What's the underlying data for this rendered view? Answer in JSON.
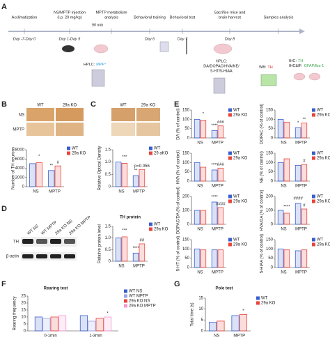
{
  "panel_labels": [
    "A",
    "B",
    "C",
    "D",
    "E",
    "F",
    "G"
  ],
  "timeline": {
    "events": [
      [
        "Acclimatization"
      ],
      [
        "NS/MPTP injection",
        "(i.p. 20 mg/kg)"
      ],
      [
        "MPTP metabolism",
        "analysis"
      ],
      [
        "Behavioral training"
      ],
      [
        "Behavioral test"
      ],
      [
        "Sacrifice mice and",
        "brain harvest"
      ],
      [
        "Samples analysis"
      ]
    ],
    "days": [
      "Day -7-Day 0",
      "Day 1-Day 5",
      "Day 6",
      "Day 7",
      "Day 8"
    ],
    "interval": "90 min",
    "mpp_hplc": {
      "label": "HPLC:",
      "value": "MPP⁺"
    },
    "brain_hplc": {
      "label": "HPLC:",
      "lines": [
        "DA/DOPAC/HVA/NE/",
        "5-HT/5-HIAA"
      ]
    },
    "wb": {
      "label": "WB:",
      "value": "TH"
    },
    "ihc": [
      {
        "label": "IHC:",
        "value": "TH"
      },
      {
        "label": "IHC&IF:",
        "value": "GFAP/Iba-1"
      }
    ]
  },
  "images": {
    "b": {
      "columns": [
        "WT",
        "29a KO"
      ],
      "rows": [
        "NS",
        "MPTP"
      ]
    },
    "c": {
      "columns": [
        "WT",
        "29a KO"
      ]
    },
    "d": {
      "lanes": [
        "WT NS",
        "WT MPTP",
        "29a KO NS",
        "29a KO MPTP"
      ],
      "bands": [
        "TH",
        "β-actin"
      ]
    }
  },
  "chart_data": [
    {
      "type": "bar",
      "ylabel": "Number of TH neurons",
      "categories": [
        "NS",
        "MPTP"
      ],
      "series": [
        {
          "name": "WT",
          "color": "#3a5fcd",
          "values": [
            5000,
            3500
          ]
        },
        {
          "name": "29a KO",
          "color": "#e8453c",
          "values": [
            5200,
            4500
          ]
        }
      ],
      "ylim": [
        0,
        8000
      ],
      "yticks": [
        0,
        2000,
        4000,
        6000,
        8000
      ],
      "annotations": [
        "#",
        "**",
        "*"
      ]
    },
    {
      "type": "bar",
      "ylabel": "Relative Optical Density",
      "categories": [
        "NS",
        "MPTP"
      ],
      "series": [
        {
          "name": "WT",
          "color": "#3a5fcd",
          "values": [
            1.0,
            0.45
          ]
        },
        {
          "name": "29 aKO",
          "color": "#e8453c",
          "values": [
            0.95,
            0.7
          ]
        }
      ],
      "ylim": [
        0,
        1.5
      ],
      "yticks": [
        0,
        0.5,
        {
          "value": 1,
          "label": "1.0"
        },
        1.5
      ],
      "annotations": [
        "p=0.056",
        "**",
        "***"
      ]
    },
    {
      "type": "bar",
      "title": "TH protein",
      "ylabel": "Relative protein level",
      "categories": [
        "NS",
        "MPTP"
      ],
      "series": [
        {
          "name": "WT",
          "color": "#3a5fcd",
          "values": [
            1.0,
            0.35
          ]
        },
        {
          "name": "29a KO",
          "color": "#e8453c",
          "values": [
            1.05,
            0.75
          ]
        }
      ],
      "ylim": [
        0,
        1.5
      ],
      "yticks": [
        0,
        0.5,
        {
          "value": 1,
          "label": "1.0"
        },
        1.5
      ],
      "annotations": [
        "##",
        "****",
        "***"
      ]
    },
    {
      "type": "bar",
      "ylabel": "DA (% of control)",
      "categories": [
        "NS",
        "MPTP"
      ],
      "series": [
        {
          "name": "WT",
          "color": "#3a5fcd",
          "values": [
            100,
            40
          ]
        },
        {
          "name": "29a KO",
          "color": "#e8453c",
          "values": [
            95,
            65
          ]
        }
      ],
      "ylim": [
        0,
        150
      ],
      "yticks": [
        0,
        50,
        100,
        150
      ],
      "annotations": [
        "###",
        "****",
        "*"
      ]
    },
    {
      "type": "bar",
      "ylabel": "DOPAC (% of control)",
      "categories": [
        "NS",
        "MPTP"
      ],
      "series": [
        {
          "name": "WT",
          "color": "#3a5fcd",
          "values": [
            100,
            55
          ]
        },
        {
          "name": "29a KO",
          "color": "#e8453c",
          "values": [
            85,
            80
          ]
        }
      ],
      "ylim": [
        0,
        150
      ],
      "yticks": [
        0,
        50,
        100,
        150
      ],
      "annotations": [
        "**",
        "*"
      ]
    },
    {
      "type": "bar",
      "ylabel": "HVA (% of control)",
      "categories": [
        "NS",
        "MPTP"
      ],
      "series": [
        {
          "name": "WT",
          "color": "#3a5fcd",
          "values": [
            100,
            60
          ]
        },
        {
          "name": "29a KO",
          "color": "#e8453c",
          "values": [
            75,
            70
          ]
        }
      ],
      "ylim": [
        0,
        150
      ],
      "yticks": [
        0,
        50,
        100,
        150
      ],
      "annotations": [
        "###",
        "****"
      ]
    },
    {
      "type": "bar",
      "ylabel": "NE (% of control)",
      "categories": [
        "NS",
        "MPTP"
      ],
      "series": [
        {
          "name": "WT",
          "color": "#3a5fcd",
          "values": [
            100,
            85
          ]
        },
        {
          "name": "29a KO",
          "color": "#e8453c",
          "values": [
            120,
            90
          ]
        }
      ],
      "ylim": [
        0,
        150
      ],
      "yticks": [
        0,
        50,
        100,
        150
      ],
      "annotations": [
        "#"
      ]
    },
    {
      "type": "bar",
      "ylabel": "DOPAC/DA (% of control)",
      "categories": [
        "NS",
        "MPTP"
      ],
      "series": [
        {
          "name": "WT",
          "color": "#3a5fcd",
          "values": [
            100,
            160
          ]
        },
        {
          "name": "29a KO",
          "color": "#e8453c",
          "values": [
            100,
            120
          ]
        }
      ],
      "ylim": [
        0,
        200
      ],
      "yticks": [
        0,
        100,
        200
      ],
      "annotations": [
        "####",
        "****"
      ]
    },
    {
      "type": "bar",
      "ylabel": "HVA/DA (% of control)",
      "categories": [
        "NS",
        "MPTP"
      ],
      "series": [
        {
          "name": "WT",
          "color": "#3a5fcd",
          "values": [
            100,
            150
          ]
        },
        {
          "name": "29a KO",
          "color": "#e8453c",
          "values": [
            80,
            110
          ]
        }
      ],
      "ylim": [
        0,
        200
      ],
      "yticks": [
        0,
        100,
        200
      ],
      "annotations": [
        "#",
        "####",
        "****"
      ]
    },
    {
      "type": "bar",
      "ylabel": "5-HT (% of control)",
      "categories": [
        "NS",
        "MPTP"
      ],
      "series": [
        {
          "name": "WT",
          "color": "#3a5fcd",
          "values": [
            100,
            95
          ]
        },
        {
          "name": "29a KO",
          "color": "#e8453c",
          "values": [
            95,
            95
          ]
        }
      ],
      "ylim": [
        0,
        150
      ],
      "yticks": [
        0,
        50,
        100,
        150
      ]
    },
    {
      "type": "bar",
      "ylabel": "5-HIAA (% of control)",
      "categories": [
        "NS",
        "MPTP"
      ],
      "series": [
        {
          "name": "WT",
          "color": "#3a5fcd",
          "values": [
            100,
            90
          ]
        },
        {
          "name": "29a KO",
          "color": "#e8453c",
          "values": [
            95,
            95
          ]
        }
      ],
      "ylim": [
        0,
        150
      ],
      "yticks": [
        0,
        50,
        100,
        150
      ]
    },
    {
      "type": "bar",
      "title": "Rearing test",
      "ylabel": "Rearing frequency",
      "categories": [
        "0-1min",
        "1-3min"
      ],
      "series": [
        {
          "name": "WT NS",
          "color": "#3a5fcd",
          "values": [
            10,
            11
          ]
        },
        {
          "name": "WT MPTP",
          "color": "#9aa6e6",
          "values": [
            9,
            7
          ]
        },
        {
          "name": "29a KO NS",
          "color": "#e8453c",
          "values": [
            10,
            9
          ]
        },
        {
          "name": "29a KO MPTP",
          "color": "#f29ad0",
          "values": [
            11,
            10
          ]
        }
      ],
      "ylim": [
        0,
        25
      ],
      "yticks": [
        0,
        5,
        10,
        15,
        20,
        25
      ],
      "annotations": [
        "*"
      ]
    },
    {
      "type": "bar",
      "title": "Pole test",
      "ylabel": "Total time (s)",
      "categories": [
        "NS",
        "MPTP"
      ],
      "series": [
        {
          "name": "WT",
          "color": "#3a5fcd",
          "values": [
            4,
            7
          ]
        },
        {
          "name": "29a KO",
          "color": "#e8453c",
          "values": [
            4.5,
            7.5
          ]
        }
      ],
      "ylim": [
        0,
        15
      ],
      "yticks": [
        0,
        5,
        10,
        15
      ],
      "annotations": [
        "*"
      ]
    }
  ]
}
